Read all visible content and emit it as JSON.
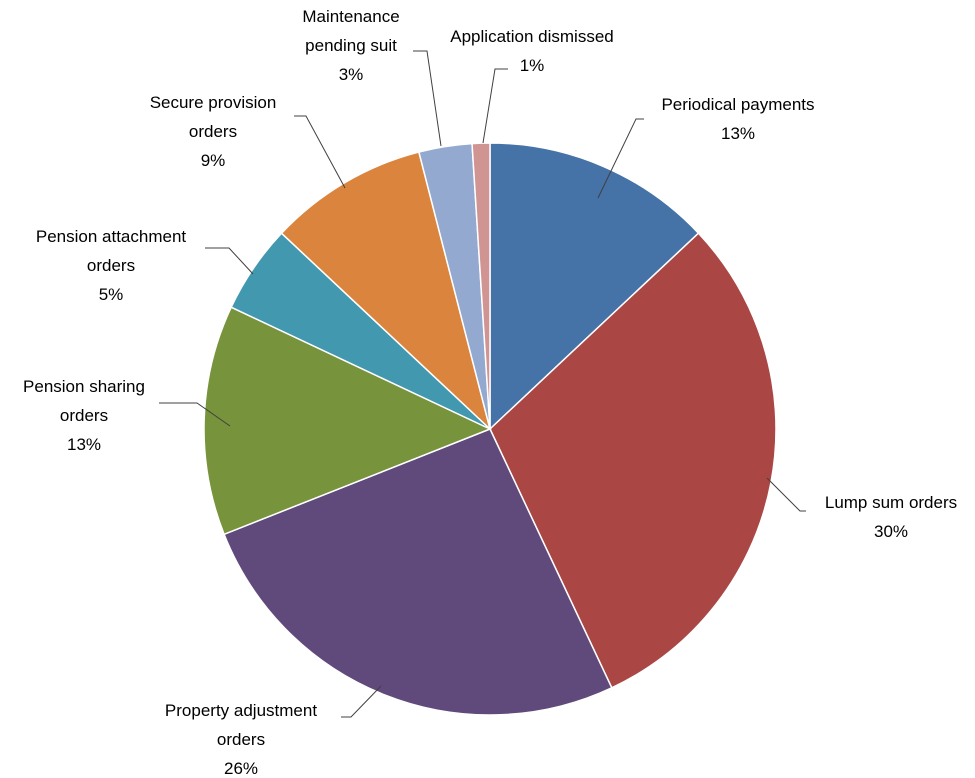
{
  "chart_data": {
    "type": "pie",
    "title": "",
    "slices": [
      {
        "name": "Periodical payments",
        "label_lines": [
          "Periodical payments"
        ],
        "value": 13,
        "percent_label": "13%",
        "color": "#4572A7"
      },
      {
        "name": "Lump sum orders",
        "label_lines": [
          "Lump sum orders"
        ],
        "value": 30,
        "percent_label": "30%",
        "color": "#AA4643"
      },
      {
        "name": "Property adjustment orders",
        "label_lines": [
          "Property adjustment",
          "orders"
        ],
        "value": 26,
        "percent_label": "26%",
        "color": "#604A7B"
      },
      {
        "name": "Pension sharing orders",
        "label_lines": [
          "Pension sharing",
          "orders"
        ],
        "value": 13,
        "percent_label": "13%",
        "color": "#77933C"
      },
      {
        "name": "Pension attachment orders",
        "label_lines": [
          "Pension attachment",
          "orders"
        ],
        "value": 5,
        "percent_label": "5%",
        "color": "#4198AF"
      },
      {
        "name": "Secure provision orders",
        "label_lines": [
          "Secure provision",
          "orders"
        ],
        "value": 9,
        "percent_label": "9%",
        "color": "#DB843D"
      },
      {
        "name": "Maintenance pending suit",
        "label_lines": [
          "Maintenance",
          "pending suit"
        ],
        "value": 3,
        "percent_label": "3%",
        "color": "#93A9CF"
      },
      {
        "name": "Application dismissed",
        "label_lines": [
          "Application dismissed"
        ],
        "value": 1,
        "percent_label": "1%",
        "color": "#D09493"
      }
    ],
    "legend": "none",
    "data_labels": "outside with leader lines"
  }
}
